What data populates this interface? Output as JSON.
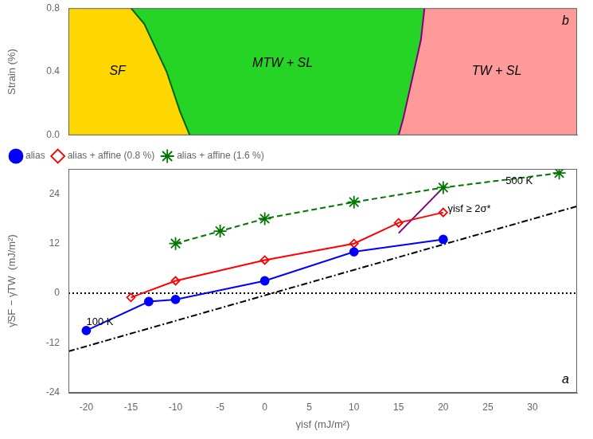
{
  "chart_data": [
    {
      "type": "line",
      "ylabel": "Strain (%)",
      "xlim": [
        -22,
        35
      ],
      "ylim": [
        0.0,
        0.8
      ],
      "xticks": [
        -20,
        -15,
        -10,
        -5,
        0,
        5,
        10,
        15,
        20,
        25,
        30
      ],
      "yticks": [
        {
          "value": 0,
          "label": "0.0"
        },
        0.4,
        0.8
      ],
      "tick_labels": "y",
      "grid": false,
      "colors": [
        "#FFD700",
        "#00CC00",
        "#FF8888"
      ],
      "series": [
        {
          "x": [
            -8.4,
            -9.5,
            -11.0,
            -13.5,
            -15.0
          ],
          "values": [
            0.0,
            0.15,
            0.4,
            0.7,
            0.8
          ],
          "color": "#006600"
        },
        {
          "x": [
            15.0,
            15.5,
            16.5,
            17.5,
            17.8,
            17.9
          ],
          "values": [
            0.0,
            0.1,
            0.35,
            0.6,
            0.75,
            0.8
          ],
          "color": "purple"
        }
      ],
      "annotations": [
        {
          "text": "SF",
          "x": -16.5,
          "y": 0.4
        },
        {
          "text": "MTW + SL",
          "x": 2,
          "y": 0.45
        },
        {
          "text": "TW + SL",
          "x": 26,
          "y": 0.4
        },
        {
          "text": "b"
        }
      ]
    },
    {
      "type": "line",
      "xlabel": "γisf (mJ/m²)",
      "ylabel": "γ̄SF − γ̄TW  (mJ/m²)",
      "xlim": [
        -22,
        35
      ],
      "ylim": [
        -24,
        30
      ],
      "xticks": [
        -20,
        -15,
        -10,
        -5,
        0,
        5,
        10,
        15,
        20,
        25,
        30
      ],
      "yticks": [
        -24,
        -12,
        0,
        12,
        24
      ],
      "grid": false,
      "legend": "upper left",
      "series": [
        {
          "name": "alias",
          "x": [
            -20,
            -13,
            -10,
            0,
            10,
            20
          ],
          "values": [
            -9,
            -2,
            -1.5,
            3,
            10,
            13
          ],
          "color": "blue",
          "marker": "circle",
          "line_style": "solid"
        },
        {
          "name": "alias + affine (0.8 %)",
          "x": [
            -15,
            -10,
            0,
            10,
            15,
            20
          ],
          "values": [
            -1,
            3,
            8,
            12,
            17,
            19.5
          ],
          "color": "red",
          "marker": "diamond",
          "line_style": "solid"
        },
        {
          "name": "alias + affine (1.6 %)",
          "x": [
            -10,
            -5,
            0,
            10,
            20,
            33
          ],
          "values": [
            12,
            15,
            18,
            22,
            25.5,
            29
          ],
          "color": "#007700",
          "marker": "star",
          "line_style": "dashed"
        },
        {
          "x": [
            15,
            20
          ],
          "values": [
            14.5,
            25.5
          ],
          "color": "purple",
          "line_style": "solid"
        },
        {
          "x": [
            -22,
            35
          ],
          "values": [
            0,
            0
          ],
          "color": "black",
          "line_style": "dotted"
        },
        {
          "x": [
            -22,
            35
          ],
          "values": [
            -14.008,
            20.99
          ],
          "color": "black",
          "line_style": "dashdot"
        }
      ],
      "annotations": [
        {
          "text": "γisf ≥ 2σ*",
          "x": 20.5,
          "y": 21.5
        },
        {
          "text": "100 K",
          "x": -20,
          "y": -8.5
        },
        {
          "text": "500 K",
          "x": 27,
          "y": 25.5
        },
        {
          "text": "a"
        }
      ]
    }
  ]
}
